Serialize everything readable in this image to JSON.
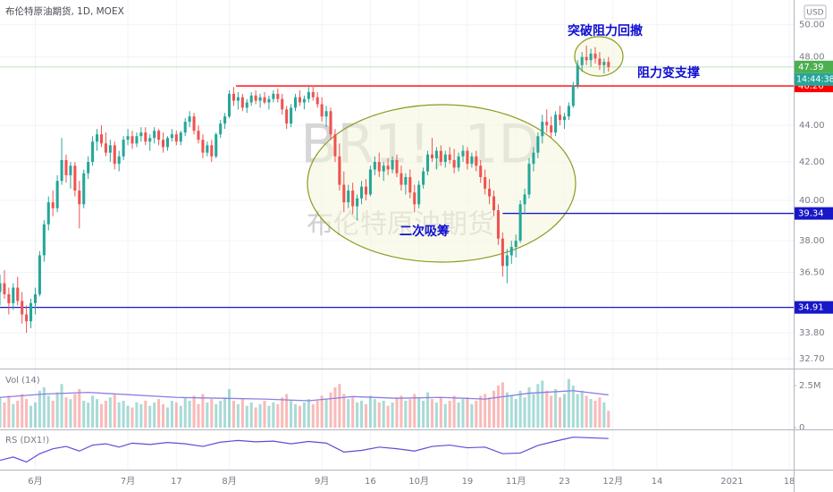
{
  "chart_data": {
    "type": "candlestick",
    "title": "布伦特原油期货, 1D, MOEX",
    "watermark": "BR1!, 1D",
    "watermark_name": "布伦特原油期货",
    "currency": "USD",
    "log": true,
    "grid": true,
    "up_color": "#26a69a",
    "down_color": "#ef5350",
    "xlim": [
      0,
      180
    ],
    "ylim": [
      32.3,
      51.6
    ],
    "yticks": [
      {
        "value": 50,
        "label": "50.00"
      },
      {
        "value": 48,
        "label": "48.00"
      },
      {
        "value": 44,
        "label": "44.00"
      },
      {
        "value": 42,
        "label": "42.00"
      },
      {
        "value": 40,
        "label": "40.00"
      },
      {
        "value": 38,
        "label": "38.00"
      },
      {
        "value": 36.5,
        "label": "36.50"
      },
      {
        "value": 33.8,
        "label": "33.80"
      },
      {
        "value": 32.7,
        "label": "32.70"
      }
    ],
    "xticks": [
      {
        "value": 8,
        "label": "6月"
      },
      {
        "value": 29,
        "label": "7月"
      },
      {
        "value": 40,
        "label": "17"
      },
      {
        "value": 52,
        "label": "8月"
      },
      {
        "value": 73,
        "label": "9月"
      },
      {
        "value": 84,
        "label": "16"
      },
      {
        "value": 95,
        "label": "10月"
      },
      {
        "value": 106,
        "label": "19"
      },
      {
        "value": 117,
        "label": "11月"
      },
      {
        "value": 128,
        "label": "23"
      },
      {
        "value": 139,
        "label": "12月"
      },
      {
        "value": 149,
        "label": "14"
      },
      {
        "value": 166,
        "label": "2021"
      },
      {
        "value": 179,
        "label": "18"
      }
    ],
    "candles": [
      [
        35.6,
        36.4,
        35.0,
        36.0
      ],
      [
        36.0,
        36.6,
        35.3,
        35.5
      ],
      [
        35.5,
        35.8,
        34.6,
        35.1
      ],
      [
        35.1,
        36.0,
        34.8,
        35.8
      ],
      [
        35.8,
        36.3,
        35.0,
        35.2
      ],
      [
        35.2,
        35.6,
        34.2,
        34.6
      ],
      [
        34.6,
        35.0,
        33.8,
        34.3
      ],
      [
        34.3,
        35.3,
        34.0,
        35.1
      ],
      [
        35.1,
        35.8,
        34.6,
        35.5
      ],
      [
        35.5,
        37.5,
        35.4,
        37.3
      ],
      [
        37.3,
        39.0,
        37.0,
        38.8
      ],
      [
        38.8,
        40.2,
        38.5,
        39.9
      ],
      [
        39.9,
        40.5,
        39.2,
        39.6
      ],
      [
        39.6,
        41.3,
        39.4,
        41.0
      ],
      [
        41.0,
        43.3,
        40.8,
        42.1
      ],
      [
        42.1,
        42.4,
        40.9,
        41.3
      ],
      [
        41.3,
        42.0,
        40.6,
        41.8
      ],
      [
        41.8,
        42.0,
        40.2,
        40.5
      ],
      [
        40.5,
        41.0,
        38.6,
        39.8
      ],
      [
        39.8,
        41.6,
        39.6,
        41.4
      ],
      [
        41.4,
        42.3,
        41.1,
        42.0
      ],
      [
        42.0,
        43.4,
        41.8,
        43.1
      ],
      [
        43.1,
        43.8,
        42.6,
        43.5
      ],
      [
        43.5,
        44.0,
        42.8,
        43.0
      ],
      [
        43.0,
        43.6,
        42.3,
        42.5
      ],
      [
        42.5,
        43.2,
        42.0,
        42.9
      ],
      [
        42.9,
        43.1,
        41.6,
        41.9
      ],
      [
        41.9,
        42.6,
        41.5,
        42.3
      ],
      [
        42.3,
        43.4,
        42.1,
        43.2
      ],
      [
        43.2,
        43.8,
        42.9,
        43.4
      ],
      [
        43.4,
        43.7,
        42.7,
        43.0
      ],
      [
        43.0,
        43.6,
        42.8,
        43.4
      ],
      [
        43.4,
        43.9,
        43.1,
        43.6
      ],
      [
        43.6,
        43.9,
        42.9,
        43.1
      ],
      [
        43.1,
        43.5,
        42.6,
        43.3
      ],
      [
        43.3,
        43.9,
        43.0,
        43.7
      ],
      [
        43.7,
        43.8,
        42.9,
        43.2
      ],
      [
        43.2,
        43.6,
        42.5,
        42.8
      ],
      [
        42.8,
        43.4,
        42.6,
        43.3
      ],
      [
        43.3,
        43.8,
        43.1,
        43.5
      ],
      [
        43.5,
        43.7,
        42.9,
        43.1
      ],
      [
        43.1,
        43.7,
        42.9,
        43.6
      ],
      [
        43.6,
        44.4,
        43.4,
        44.2
      ],
      [
        44.2,
        44.8,
        43.9,
        44.5
      ],
      [
        44.5,
        44.7,
        43.5,
        43.7
      ],
      [
        43.7,
        44.0,
        43.0,
        43.2
      ],
      [
        43.2,
        43.5,
        42.2,
        42.5
      ],
      [
        42.5,
        43.1,
        42.3,
        42.9
      ],
      [
        42.9,
        43.2,
        42.0,
        42.3
      ],
      [
        42.3,
        43.6,
        42.2,
        43.5
      ],
      [
        43.5,
        44.3,
        43.3,
        44.1
      ],
      [
        44.1,
        44.7,
        43.8,
        44.5
      ],
      [
        44.5,
        46.0,
        44.4,
        45.8
      ],
      [
        45.8,
        46.2,
        45.1,
        45.4
      ],
      [
        45.4,
        45.9,
        44.9,
        45.6
      ],
      [
        45.6,
        45.8,
        44.8,
        45.0
      ],
      [
        45.0,
        45.5,
        44.7,
        45.3
      ],
      [
        45.3,
        45.9,
        45.1,
        45.7
      ],
      [
        45.7,
        46.0,
        45.2,
        45.4
      ],
      [
        45.4,
        45.8,
        45.0,
        45.6
      ],
      [
        45.6,
        45.9,
        45.2,
        45.3
      ],
      [
        45.3,
        45.7,
        44.9,
        45.5
      ],
      [
        45.5,
        46.0,
        45.3,
        45.8
      ],
      [
        45.8,
        46.1,
        45.3,
        45.5
      ],
      [
        45.5,
        45.8,
        44.6,
        44.9
      ],
      [
        44.9,
        45.1,
        43.8,
        44.1
      ],
      [
        44.1,
        45.2,
        43.9,
        45.0
      ],
      [
        45.0,
        45.8,
        44.8,
        45.6
      ],
      [
        45.6,
        46.0,
        45.1,
        45.3
      ],
      [
        45.3,
        45.7,
        44.9,
        45.5
      ],
      [
        45.5,
        46.2,
        45.3,
        45.9
      ],
      [
        45.9,
        46.3,
        45.4,
        45.6
      ],
      [
        45.6,
        45.9,
        45.0,
        45.2
      ],
      [
        45.2,
        45.6,
        44.2,
        44.5
      ],
      [
        44.5,
        45.1,
        43.9,
        44.8
      ],
      [
        44.8,
        45.0,
        43.2,
        43.5
      ],
      [
        43.5,
        43.8,
        42.0,
        42.3
      ],
      [
        42.3,
        43.0,
        40.5,
        40.8
      ],
      [
        40.8,
        41.5,
        39.4,
        39.9
      ],
      [
        39.9,
        40.8,
        39.6,
        40.5
      ],
      [
        40.5,
        40.9,
        39.3,
        39.7
      ],
      [
        39.7,
        40.3,
        39.0,
        40.1
      ],
      [
        40.1,
        41.0,
        39.8,
        40.7
      ],
      [
        40.7,
        41.1,
        40.0,
        40.3
      ],
      [
        40.3,
        41.8,
        40.2,
        41.6
      ],
      [
        41.6,
        42.3,
        41.3,
        42.0
      ],
      [
        42.0,
        42.5,
        41.2,
        41.5
      ],
      [
        41.5,
        42.0,
        41.0,
        41.8
      ],
      [
        41.8,
        42.2,
        41.3,
        41.6
      ],
      [
        41.6,
        42.3,
        41.4,
        42.1
      ],
      [
        42.1,
        42.4,
        41.2,
        41.4
      ],
      [
        41.4,
        41.8,
        40.5,
        40.8
      ],
      [
        40.8,
        41.4,
        40.3,
        41.2
      ],
      [
        41.2,
        41.6,
        40.1,
        40.4
      ],
      [
        40.4,
        40.8,
        39.4,
        39.8
      ],
      [
        39.8,
        41.0,
        39.6,
        40.8
      ],
      [
        40.8,
        41.7,
        40.6,
        41.5
      ],
      [
        41.5,
        42.6,
        41.3,
        42.4
      ],
      [
        42.4,
        43.3,
        42.0,
        42.2
      ],
      [
        42.2,
        42.8,
        41.6,
        42.6
      ],
      [
        42.6,
        42.9,
        41.8,
        42.0
      ],
      [
        42.0,
        42.6,
        41.7,
        42.4
      ],
      [
        42.4,
        42.8,
        41.9,
        42.1
      ],
      [
        42.1,
        42.7,
        41.4,
        41.7
      ],
      [
        41.7,
        42.5,
        41.5,
        42.3
      ],
      [
        42.3,
        42.9,
        42.0,
        42.6
      ],
      [
        42.6,
        42.8,
        41.6,
        41.9
      ],
      [
        41.9,
        42.5,
        41.7,
        42.3
      ],
      [
        42.3,
        42.6,
        41.5,
        41.8
      ],
      [
        41.8,
        42.1,
        40.9,
        41.2
      ],
      [
        41.2,
        41.6,
        40.3,
        40.6
      ],
      [
        40.6,
        41.1,
        39.8,
        40.2
      ],
      [
        40.2,
        40.5,
        39.2,
        39.5
      ],
      [
        39.5,
        39.8,
        37.8,
        38.1
      ],
      [
        38.1,
        38.4,
        36.3,
        36.8
      ],
      [
        36.8,
        37.6,
        36.0,
        37.3
      ],
      [
        37.3,
        38.0,
        36.9,
        37.7
      ],
      [
        37.7,
        38.3,
        37.2,
        38.0
      ],
      [
        38.0,
        40.0,
        37.9,
        39.8
      ],
      [
        39.8,
        40.6,
        39.3,
        40.3
      ],
      [
        40.3,
        42.2,
        40.1,
        41.9
      ],
      [
        41.9,
        42.8,
        41.5,
        42.5
      ],
      [
        42.5,
        43.6,
        42.2,
        43.4
      ],
      [
        43.4,
        44.6,
        43.0,
        44.2
      ],
      [
        44.2,
        44.9,
        43.6,
        44.0
      ],
      [
        44.0,
        44.5,
        43.3,
        43.6
      ],
      [
        43.6,
        44.8,
        43.4,
        44.6
      ],
      [
        44.6,
        45.1,
        44.0,
        44.3
      ],
      [
        44.3,
        44.7,
        43.8,
        44.5
      ],
      [
        44.5,
        45.3,
        44.3,
        45.1
      ],
      [
        45.1,
        46.5,
        45.0,
        46.3
      ],
      [
        46.3,
        47.8,
        46.1,
        47.5
      ],
      [
        47.5,
        48.3,
        47.1,
        48.0
      ],
      [
        48.0,
        48.7,
        47.5,
        47.8
      ],
      [
        47.8,
        48.5,
        47.4,
        48.2
      ],
      [
        48.2,
        48.6,
        47.6,
        47.9
      ],
      [
        47.9,
        48.3,
        47.2,
        47.5
      ],
      [
        47.5,
        47.9,
        47.0,
        47.7
      ],
      [
        47.7,
        48.0,
        47.1,
        47.39
      ]
    ],
    "last_price": 47.39,
    "countdown": "14:44:38",
    "last_color": "#4caf50",
    "levels": [
      {
        "value": 46.26,
        "color": "#ff0000",
        "x_start": 53.5
      },
      {
        "value": 39.34,
        "color": "#1818c8",
        "x_start": 114
      },
      {
        "value": 34.91,
        "color": "#1818c8",
        "x_start": 0
      }
    ],
    "annotations": [
      "突破阻力回撤",
      "阻力变支撑",
      "二次吸筹"
    ],
    "volume": {
      "title": "Vol (14)",
      "ylim": [
        0,
        3.2
      ],
      "yticks": [
        {
          "value": 2.5,
          "label": "2.5M"
        },
        0
      ],
      "values": [
        1.8,
        1.5,
        1.9,
        1.4,
        1.6,
        2.0,
        1.7,
        1.3,
        1.5,
        2.2,
        2.4,
        1.9,
        1.6,
        2.1,
        2.6,
        1.8,
        1.7,
        2.0,
        2.3,
        1.6,
        1.5,
        1.9,
        1.7,
        1.4,
        1.6,
        1.8,
        2.0,
        1.5,
        1.6,
        1.3,
        1.2,
        1.5,
        1.4,
        1.6,
        1.3,
        1.5,
        1.7,
        1.4,
        1.2,
        1.6,
        1.5,
        1.3,
        1.8,
        1.6,
        1.9,
        1.4,
        2.0,
        1.5,
        1.7,
        1.4,
        1.6,
        1.8,
        2.3,
        1.6,
        1.4,
        1.7,
        1.3,
        1.5,
        1.2,
        1.4,
        1.6,
        1.3,
        1.5,
        1.4,
        1.8,
        2.0,
        1.6,
        1.4,
        1.3,
        1.5,
        1.7,
        1.4,
        1.6,
        1.9,
        1.7,
        2.1,
        2.4,
        2.6,
        2.0,
        1.7,
        1.8,
        1.5,
        1.6,
        1.4,
        1.9,
        1.7,
        1.5,
        1.6,
        1.3,
        1.5,
        1.8,
        1.9,
        1.6,
        1.7,
        2.0,
        1.8,
        1.6,
        2.1,
        1.7,
        1.5,
        1.8,
        1.4,
        1.6,
        1.9,
        1.5,
        1.7,
        1.8,
        1.4,
        1.6,
        1.9,
        2.0,
        1.8,
        2.2,
        2.5,
        2.7,
        2.1,
        1.9,
        1.7,
        2.2,
        1.8,
        2.4,
        2.0,
        2.6,
        2.8,
        2.2,
        1.9,
        2.3,
        1.8,
        2.0,
        2.9,
        2.5,
        2.0,
        2.2,
        1.9,
        1.7,
        1.6,
        1.8,
        1.5,
        1.0
      ],
      "ma": {
        "color": "#8c7fe0",
        "x": [
          0,
          10,
          20,
          30,
          40,
          50,
          60,
          70,
          80,
          90,
          100,
          110,
          120,
          130,
          138
        ],
        "values": [
          1.8,
          2.0,
          2.1,
          1.95,
          1.8,
          1.75,
          1.7,
          1.6,
          1.85,
          1.75,
          1.8,
          1.7,
          2.05,
          2.2,
          1.95
        ]
      }
    },
    "rs": {
      "title": "RS (DX1!)",
      "color": "#5b4fd6",
      "ylim": [
        0,
        100
      ],
      "x": [
        0,
        3,
        6,
        9,
        12,
        15,
        18,
        21,
        24,
        27,
        30,
        34,
        38,
        42,
        46,
        50,
        54,
        58,
        62,
        66,
        70,
        74,
        78,
        82,
        86,
        90,
        94,
        98,
        102,
        106,
        110,
        114,
        118,
        122,
        126,
        130,
        134,
        138
      ],
      "values": [
        20,
        30,
        15,
        40,
        55,
        62,
        48,
        66,
        70,
        60,
        72,
        68,
        74,
        70,
        62,
        75,
        80,
        76,
        78,
        70,
        77,
        72,
        45,
        50,
        60,
        55,
        48,
        62,
        66,
        58,
        60,
        40,
        42,
        65,
        78,
        90,
        88,
        86
      ]
    }
  }
}
